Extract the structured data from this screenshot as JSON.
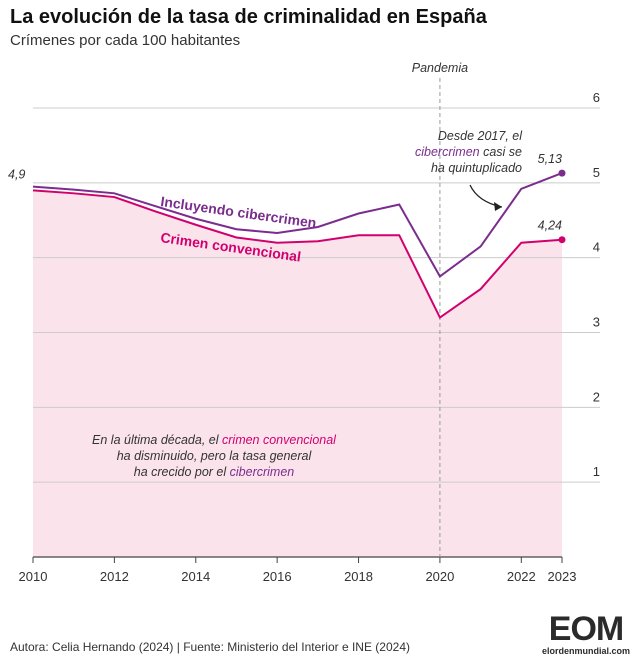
{
  "header": {
    "title": "La evolución de la tasa de criminalidad en España",
    "subtitle": "Crímenes  por cada 100 habitantes"
  },
  "footer": {
    "source": "Autora: Celia Hernando (2024) | Fuente: Ministerio del Interior e INE (2024)"
  },
  "logo": {
    "mark": "EOM",
    "text": "elordenmundial.com"
  },
  "colors": {
    "cyber": "#7b2d8e",
    "conventional": "#d1006f",
    "area_fill": "#fbe3ec",
    "grid": "#cccccc",
    "pandemic_line": "#999999"
  },
  "chart_data": {
    "type": "line",
    "title": "La evolución de la tasa de criminalidad en España",
    "subtitle": "Crímenes  por cada 100 habitantes",
    "xlabel": "",
    "ylabel": "",
    "x": [
      2010,
      2011,
      2012,
      2013,
      2014,
      2015,
      2016,
      2017,
      2018,
      2019,
      2020,
      2021,
      2022,
      2023
    ],
    "xticks": [
      2010,
      2012,
      2014,
      2016,
      2018,
      2020,
      2022,
      2023
    ],
    "yticks": [
      1,
      2,
      3,
      4,
      5,
      6
    ],
    "xlim": [
      2010,
      2023
    ],
    "ylim": [
      0,
      6
    ],
    "grid": true,
    "series": [
      {
        "name": "Incluyendo cibercrimen",
        "values": [
          4.95,
          4.91,
          4.86,
          4.69,
          4.52,
          4.38,
          4.33,
          4.41,
          4.59,
          4.71,
          3.75,
          4.15,
          4.92,
          5.13
        ]
      },
      {
        "name": "Crimen convencional",
        "values": [
          4.9,
          4.86,
          4.81,
          4.62,
          4.44,
          4.27,
          4.2,
          4.22,
          4.3,
          4.3,
          3.2,
          3.58,
          4.2,
          4.24
        ]
      }
    ],
    "value_labels": {
      "start": "4,9",
      "end_cyber": "5,13",
      "end_conventional": "4,24"
    },
    "event": {
      "x": 2020,
      "label": "Pandemia"
    },
    "annotations": {
      "cyber_note": [
        "Desde 2017, el",
        "cibercrimen",
        " casi se",
        "ha quintuplicado"
      ],
      "decade_note": [
        "En la última década, el ",
        "crimen convencional",
        "ha disminuido, pero la tasa general",
        "ha crecido por el ",
        "cibercrimen"
      ]
    }
  }
}
